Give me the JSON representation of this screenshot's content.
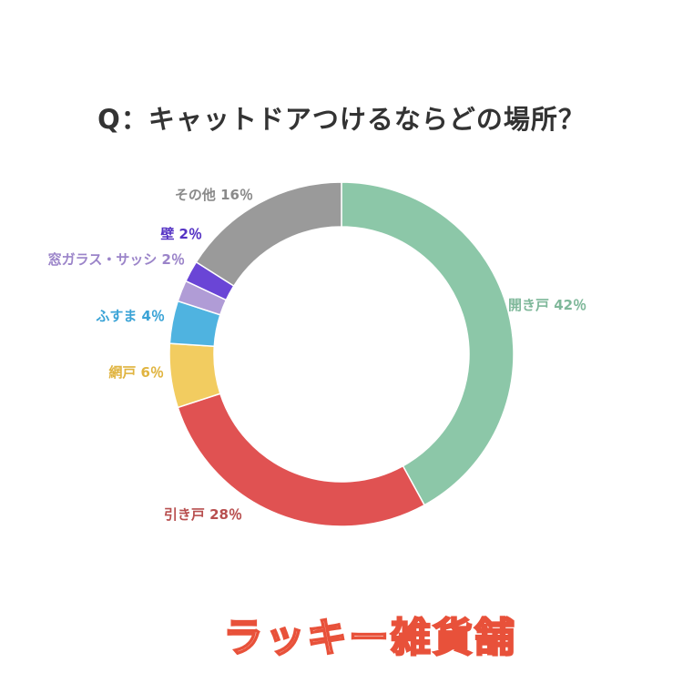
{
  "chart_data": {
    "type": "pie",
    "variant": "donut",
    "title": "Q：キャットドアつけるならどの場所？",
    "slices": [
      {
        "label": "開き戸",
        "value": 42,
        "display": "開き戸 42％",
        "color": "#8cc7a8",
        "label_color": "#7fb89a"
      },
      {
        "label": "引き戸",
        "value": 28,
        "display": "引き戸 28％",
        "color": "#e05252",
        "label_color": "#b84f4f"
      },
      {
        "label": "網戸",
        "value": 6,
        "display": "網戸 6％",
        "color": "#f2cc60",
        "label_color": "#e0b440"
      },
      {
        "label": "ふすま",
        "value": 4,
        "display": "ふすま 4％",
        "color": "#4fb3e0",
        "label_color": "#3aa3d6"
      },
      {
        "label": "窓ガラス・サッシ",
        "value": 2,
        "display": "窓ガラス・サッシ 2％",
        "color": "#b09cd6",
        "label_color": "#9b84c9"
      },
      {
        "label": "壁",
        "value": 2,
        "display": "壁 2％",
        "color": "#6a45d6",
        "label_color": "#5533c4"
      },
      {
        "label": "その他",
        "value": 16,
        "display": "その他 16％",
        "color": "#9a9a9a",
        "label_color": "#8a8a8a"
      }
    ]
  },
  "watermark": "ラッキー雑貨舗"
}
